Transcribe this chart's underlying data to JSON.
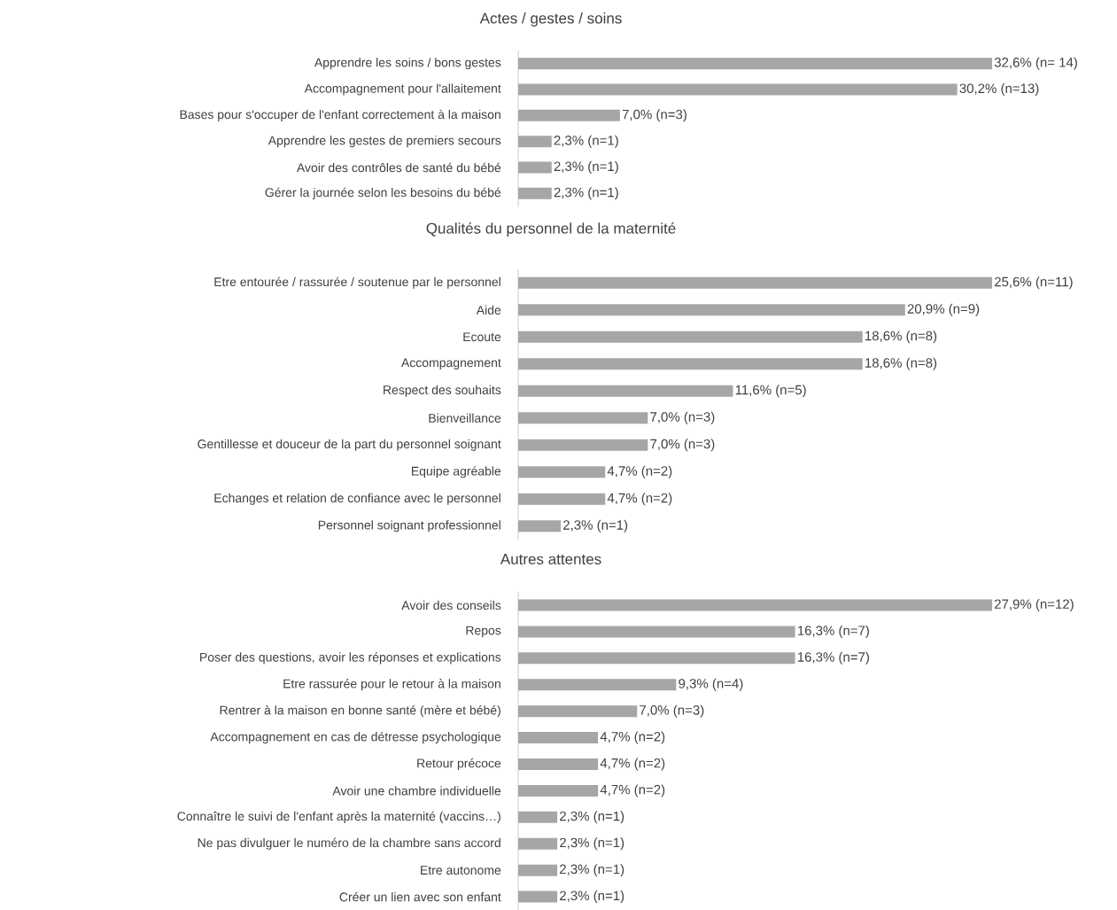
{
  "chart_data": [
    {
      "type": "bar",
      "orientation": "horizontal",
      "title": "Actes / gestes / soins",
      "color": "#a6a6a6",
      "categories": [
        "Apprendre les soins / bons gestes",
        "Accompagnement pour l'allaitement",
        "Bases pour s'occuper de l'enfant correctement à la maison",
        "Apprendre les gestes de premiers secours",
        "Avoir des contrôles de santé du bébé",
        "Gérer la journée selon les besoins du bébé"
      ],
      "values": [
        32.6,
        30.2,
        7.0,
        2.3,
        2.3,
        2.3
      ],
      "value_labels": [
        "32,6% (n= 14)",
        "30,2% (n=13)",
        "7,0% (n=3)",
        "2,3% (n=1)",
        "2,3% (n=1)",
        "2,3% (n=1)"
      ]
    },
    {
      "type": "bar",
      "orientation": "horizontal",
      "title": "Qualités du personnel de la maternité",
      "color": "#a6a6a6",
      "categories": [
        "Etre entourée / rassurée / soutenue par le personnel",
        "Aide",
        "Ecoute",
        "Accompagnement",
        "Respect des souhaits",
        "Bienveillance",
        "Gentillesse et douceur de la part du personnel soignant",
        "Equipe agréable",
        "Echanges et relation de confiance avec le personnel",
        "Personnel soignant professionnel"
      ],
      "values": [
        25.6,
        20.9,
        18.6,
        18.6,
        11.6,
        7.0,
        7.0,
        4.7,
        4.7,
        2.3
      ],
      "value_labels": [
        "25,6% (n=11)",
        "20,9% (n=9)",
        "18,6% (n=8)",
        "18,6% (n=8)",
        "11,6% (n=5)",
        "7,0% (n=3)",
        "7,0% (n=3)",
        "4,7% (n=2)",
        "4,7% (n=2)",
        "2,3% (n=1)"
      ]
    },
    {
      "type": "bar",
      "orientation": "horizontal",
      "title": "Autres attentes",
      "color": "#a6a6a6",
      "categories": [
        "Avoir des conseils",
        "Repos",
        "Poser des questions, avoir les réponses et explications",
        "Etre rassurée pour le retour à la maison",
        "Rentrer à la maison en bonne santé (mère et bébé)",
        "Accompagnement en cas de détresse psychologique",
        "Retour précoce",
        "Avoir une chambre individuelle",
        "Connaître le suivi de l'enfant après la maternité (vaccins…)",
        "Ne pas divulguer le numéro de la chambre sans accord",
        "Etre autonome",
        "Créer un lien avec son enfant"
      ],
      "values": [
        27.9,
        16.3,
        16.3,
        9.3,
        7.0,
        4.7,
        4.7,
        4.7,
        2.3,
        2.3,
        2.3,
        2.3
      ],
      "value_labels": [
        "27,9% (n=12)",
        "16,3% (n=7)",
        "16,3% (n=7)",
        "9,3% (n=4)",
        "7,0% (n=3)",
        "4,7% (n=2)",
        "4,7% (n=2)",
        "4,7% (n=2)",
        "2,3% (n=1)",
        "2,3% (n=1)",
        "2,3% (n=1)",
        "2,3% (n=1)"
      ]
    }
  ]
}
